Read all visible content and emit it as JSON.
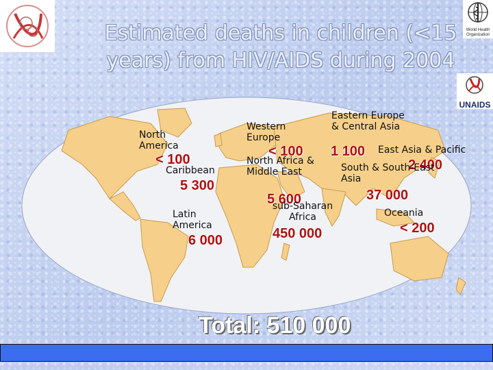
{
  "title_line1": "Estimated deaths in children (<15",
  "title_line2": "years) from HIV/AIDS during 2004",
  "logos": {
    "who_text": "World Health Organization",
    "unaids_text": "UNAIDS"
  },
  "regions": {
    "north_america": {
      "label": "North America",
      "value": "< 100"
    },
    "caribbean": {
      "label": "Caribbean",
      "value": "5 300"
    },
    "latin_america": {
      "label": "Latin America",
      "value": "6 000"
    },
    "western_europe": {
      "label": "Western Europe",
      "value": "< 100"
    },
    "north_africa_middle_east": {
      "label": "North Africa & Middle East",
      "value": "5 600"
    },
    "sub_saharan_africa": {
      "label": "sub-Saharan Africa",
      "value": "450 000"
    },
    "eastern_europe_central_asia": {
      "label": "Eastern Europe & Central Asia",
      "value": "1 100"
    },
    "east_asia_pacific": {
      "label": "East Asia & Pacific",
      "value": "2 400"
    },
    "south_southeast_asia": {
      "label": "South & South-East Asia",
      "value": "37 000"
    },
    "oceania": {
      "label": "Oceania",
      "value": "< 200"
    }
  },
  "total": "Total: 510 000",
  "colors": {
    "value_red": "#b01010",
    "ocean": "#f1f2f6",
    "land": "#f6d08a",
    "footer": "#3c6cf0"
  }
}
